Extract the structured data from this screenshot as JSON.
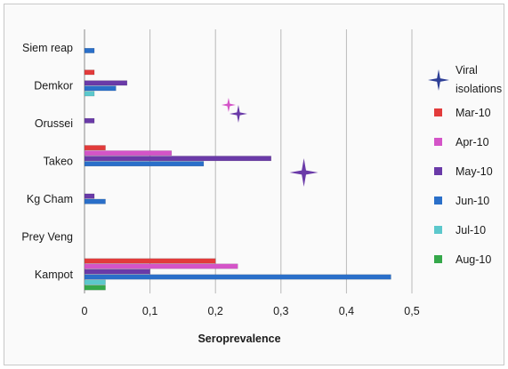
{
  "chart_data": {
    "type": "bar",
    "orientation": "horizontal",
    "categories": [
      "Siem reap",
      "Demkor",
      "Orussei",
      "Takeo",
      "Kg Cham",
      "Prey Veng",
      "Kampot"
    ],
    "xlabel": "Seroprevalence",
    "xlim": [
      0,
      0.5
    ],
    "x_ticks": [
      "0",
      "0,1",
      "0,2",
      "0,3",
      "0,4",
      "0,5"
    ],
    "grid": "vertical",
    "legend_position": "right",
    "series": [
      {
        "name": "Mar-10",
        "color": "#e23b3b",
        "values": [
          null,
          0.015,
          null,
          0.032,
          null,
          null,
          0.2
        ]
      },
      {
        "name": "Apr-10",
        "color": "#d454c8",
        "values": [
          null,
          null,
          null,
          0.133,
          null,
          null,
          0.234
        ]
      },
      {
        "name": "May-10",
        "color": "#6a3aa8",
        "values": [
          null,
          0.065,
          0.015,
          0.285,
          0.015,
          null,
          0.1
        ]
      },
      {
        "name": "Jun-10",
        "color": "#2a6fc9",
        "values": [
          0.015,
          0.048,
          null,
          0.182,
          0.032,
          null,
          0.468
        ]
      },
      {
        "name": "Jul-10",
        "color": "#5cc8cc",
        "values": [
          null,
          0.015,
          null,
          null,
          null,
          null,
          0.032
        ]
      },
      {
        "name": "Aug-10",
        "color": "#35a84a",
        "values": [
          null,
          null,
          null,
          null,
          null,
          null,
          0.032
        ]
      }
    ],
    "viral_isolations": {
      "name": "Viral isolations",
      "marker": "star",
      "points": [
        {
          "x": 0.22,
          "color": "#d454c8"
        },
        {
          "x": 0.235,
          "color": "#6a3aa8"
        },
        {
          "x": 0.335,
          "color": "#6a3aa8"
        }
      ]
    }
  }
}
